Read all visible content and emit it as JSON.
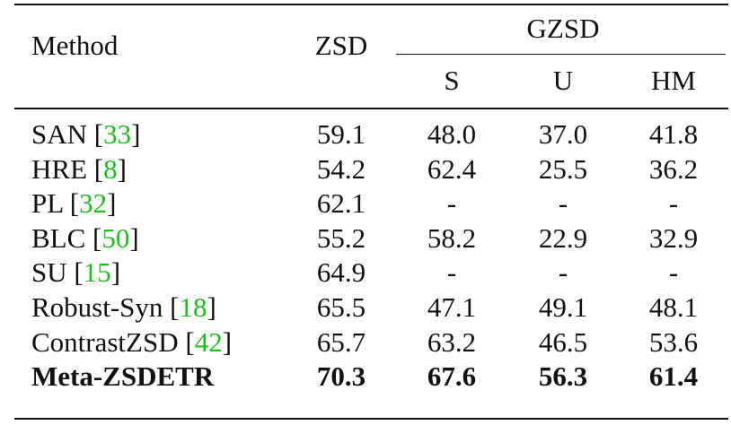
{
  "table": {
    "headers": {
      "method": "Method",
      "zsd": "ZSD",
      "gzsd": "GZSD",
      "s": "S",
      "u": "U",
      "hm": "HM"
    },
    "rows": [
      {
        "name": "SAN",
        "ref": "33",
        "zsd": "59.1",
        "s": "48.0",
        "u": "37.0",
        "hm": "41.8"
      },
      {
        "name": "HRE",
        "ref": "8",
        "zsd": "54.2",
        "s": "62.4",
        "u": "25.5",
        "hm": "36.2"
      },
      {
        "name": "PL",
        "ref": "32",
        "zsd": "62.1",
        "s": "-",
        "u": "-",
        "hm": "-"
      },
      {
        "name": "BLC",
        "ref": "50",
        "zsd": "55.2",
        "s": "58.2",
        "u": "22.9",
        "hm": "32.9"
      },
      {
        "name": "SU",
        "ref": "15",
        "zsd": "64.9",
        "s": "-",
        "u": "-",
        "hm": "-"
      },
      {
        "name": "Robust-Syn",
        "ref": "18",
        "zsd": "65.5",
        "s": "47.1",
        "u": "49.1",
        "hm": "48.1"
      },
      {
        "name": "ContrastZSD",
        "ref": "42",
        "zsd": "65.7",
        "s": "63.2",
        "u": "46.5",
        "hm": "53.6"
      },
      {
        "name": "Meta-ZSDETR",
        "ref": "",
        "zsd": "70.3",
        "s": "67.6",
        "u": "56.3",
        "hm": "61.4",
        "bold": true
      }
    ]
  },
  "colors": {
    "text": "#111111",
    "reference": "#22bb22"
  }
}
